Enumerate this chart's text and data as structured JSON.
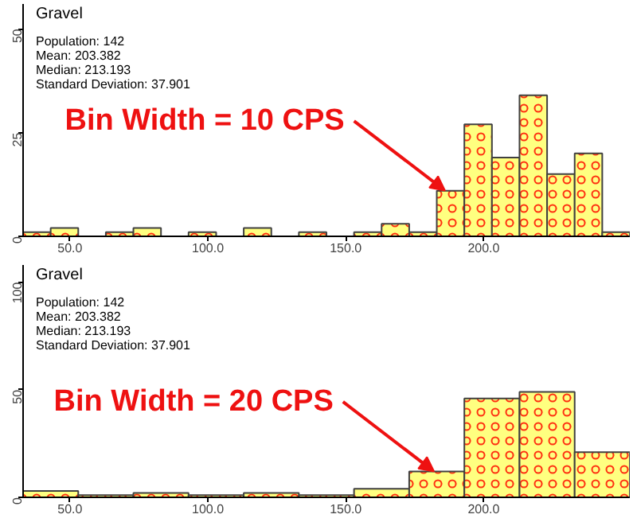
{
  "chart_data": [
    {
      "type": "histogram",
      "title": "Gravel",
      "color": "#ffff80",
      "bins": [
        33,
        43,
        53,
        63,
        73,
        83,
        93,
        103,
        113,
        123,
        133,
        143,
        153,
        163,
        173,
        183,
        193,
        203,
        213,
        223,
        233,
        243,
        253
      ],
      "values": [
        1,
        2,
        0,
        1,
        2,
        0,
        1,
        0,
        2,
        0,
        1,
        0,
        1,
        3,
        1,
        11,
        27,
        19,
        34,
        15,
        20,
        1
      ],
      "xlim": [
        33,
        253
      ],
      "ylim": [
        0,
        56
      ],
      "xticks": [
        {
          "value": 50,
          "label": "50.0"
        },
        {
          "value": 100,
          "label": "100.0"
        },
        {
          "value": 150,
          "label": "150.0"
        },
        {
          "value": 200,
          "label": "200.0"
        }
      ],
      "yticks": [
        0,
        25,
        50
      ],
      "annotations": [
        "Population: 142",
        "Mean: 203.382",
        "Median: 213.193",
        "Standard Deviation: 37.901",
        {
          "text": "Bin Width = 10 CPS",
          "x": 186,
          "y": 11
        }
      ]
    },
    {
      "type": "histogram",
      "title": "Gravel",
      "color": "#ffff80",
      "bins": [
        33,
        53,
        73,
        93,
        113,
        133,
        153,
        173,
        193,
        213,
        233,
        253
      ],
      "values": [
        3,
        1,
        2,
        1,
        2,
        1,
        4,
        12,
        46,
        49,
        21
      ],
      "xlim": [
        33,
        253
      ],
      "ylim": [
        0,
        108
      ],
      "xticks": [
        {
          "value": 50,
          "label": "50.0"
        },
        {
          "value": 100,
          "label": "100.0"
        },
        {
          "value": 150,
          "label": "150.0"
        },
        {
          "value": 200,
          "label": "200.0"
        }
      ],
      "yticks": [
        0,
        50,
        100
      ],
      "annotations": [
        "Population: 142",
        "Mean: 203.382",
        "Median: 213.193",
        "Standard Deviation: 37.901",
        {
          "text": "Bin Width = 20 CPS",
          "x": 182,
          "y": 12
        }
      ]
    }
  ]
}
